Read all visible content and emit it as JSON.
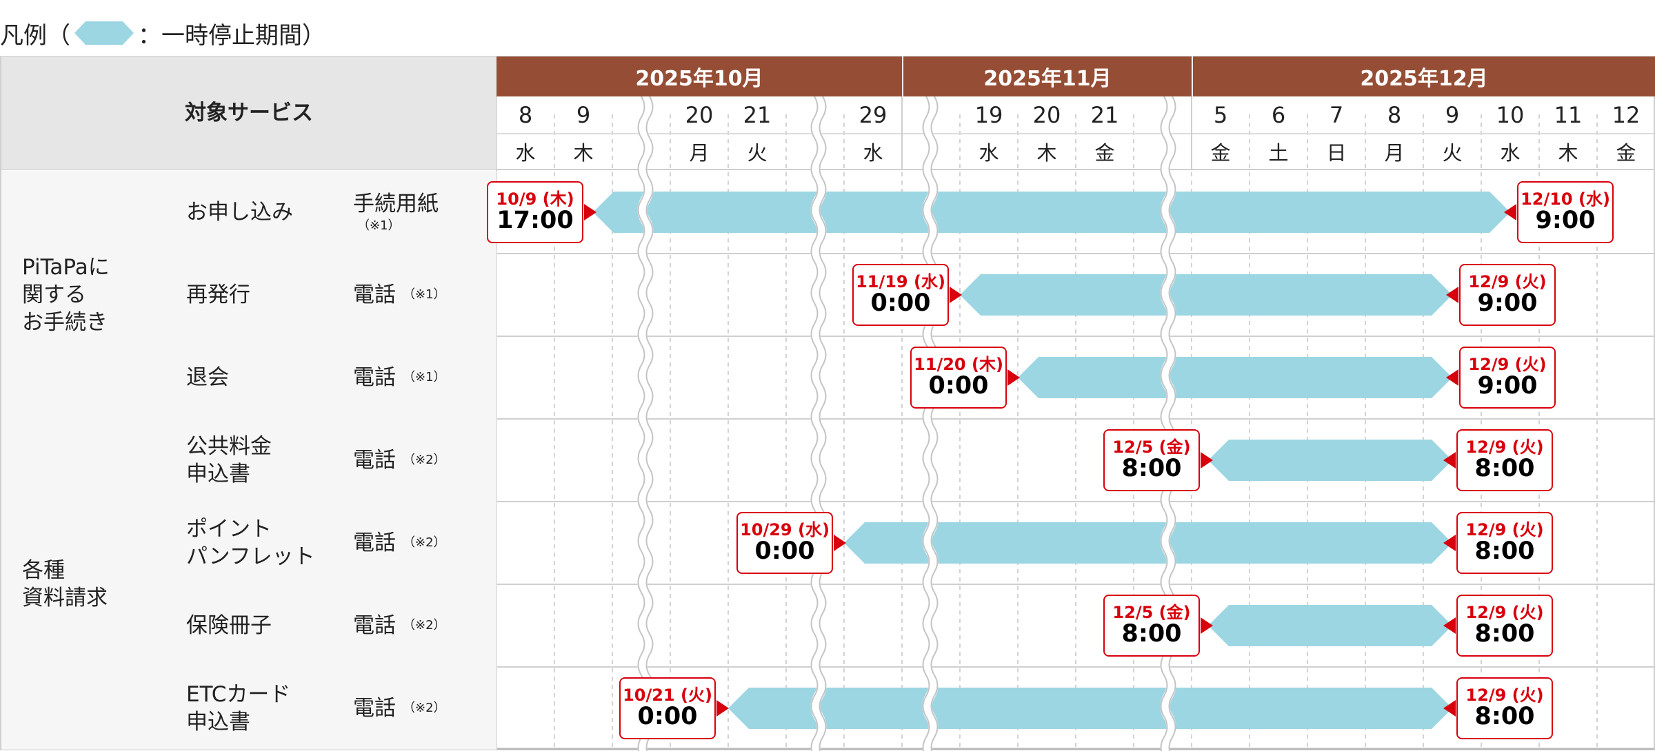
{
  "legend": {
    "prefix": "凡例（",
    "suffix": "：一時停止期間）",
    "icon": "bar-swatch",
    "bar_color": "#9dd6e3"
  },
  "header": {
    "target_service": "対象サービス"
  },
  "months": [
    {
      "label": "2025年10月"
    },
    {
      "label": "2025年11月"
    },
    {
      "label": "2025年12月"
    }
  ],
  "days": [
    {
      "day": "8",
      "wd": "水"
    },
    {
      "day": "9",
      "wd": "木"
    },
    {
      "day": "",
      "wd": ""
    },
    {
      "day": "20",
      "wd": "月"
    },
    {
      "day": "21",
      "wd": "火"
    },
    {
      "day": "",
      "wd": ""
    },
    {
      "day": "29",
      "wd": "水"
    },
    {
      "day": "",
      "wd": ""
    },
    {
      "day": "19",
      "wd": "水"
    },
    {
      "day": "20",
      "wd": "木"
    },
    {
      "day": "21",
      "wd": "金"
    },
    {
      "day": "",
      "wd": ""
    },
    {
      "day": "5",
      "wd": "金"
    },
    {
      "day": "6",
      "wd": "土"
    },
    {
      "day": "7",
      "wd": "日"
    },
    {
      "day": "8",
      "wd": "月"
    },
    {
      "day": "9",
      "wd": "火"
    },
    {
      "day": "10",
      "wd": "水"
    },
    {
      "day": "11",
      "wd": "木"
    },
    {
      "day": "12",
      "wd": "金"
    }
  ],
  "groups": [
    {
      "label": "PiTaPaに\n関する\nお手続き"
    },
    {
      "label": "各種\n資料請求"
    }
  ],
  "rows": [
    {
      "service": "お申し込み",
      "method": "手続用紙",
      "note": "（※1）",
      "note_below": true,
      "start": {
        "date": "10/9 (木)",
        "time": "17:00"
      },
      "end": {
        "date": "12/10 (水)",
        "time": "9:00"
      }
    },
    {
      "service": "再発行",
      "method": "電話",
      "note": "（※1）",
      "note_below": false,
      "start": {
        "date": "11/19 (水)",
        "time": "0:00"
      },
      "end": {
        "date": "12/9 (火)",
        "time": "9:00"
      }
    },
    {
      "service": "退会",
      "method": "電話",
      "note": "（※1）",
      "note_below": false,
      "start": {
        "date": "11/20 (木)",
        "time": "0:00"
      },
      "end": {
        "date": "12/9 (火)",
        "time": "9:00"
      }
    },
    {
      "service": "公共料金\n申込書",
      "method": "電話",
      "note": "（※2）",
      "note_below": false,
      "start": {
        "date": "12/5 (金)",
        "time": "8:00"
      },
      "end": {
        "date": "12/9 (火)",
        "time": "8:00"
      }
    },
    {
      "service": "ポイント\nパンフレット",
      "method": "電話",
      "note": "（※2）",
      "note_below": false,
      "start": {
        "date": "10/29 (水)",
        "time": "0:00"
      },
      "end": {
        "date": "12/9 (火)",
        "time": "8:00"
      }
    },
    {
      "service": "保険冊子",
      "method": "電話",
      "note": "（※2）",
      "note_below": false,
      "start": {
        "date": "12/5 (金)",
        "time": "8:00"
      },
      "end": {
        "date": "12/9 (火)",
        "time": "8:00"
      }
    },
    {
      "service": "ETCカード\n申込書",
      "method": "電話",
      "note": "（※2）",
      "note_below": false,
      "start": {
        "date": "10/21 (火)",
        "time": "0:00"
      },
      "end": {
        "date": "12/9 (火)",
        "time": "8:00"
      }
    }
  ],
  "colors": {
    "month_bg": "#954e35",
    "bar": "#9dd6e3",
    "label_border": "#d8000c",
    "marker": "#d8000c",
    "header_bg": "#e6e6e6",
    "side_bg": "#f6f6f6"
  }
}
